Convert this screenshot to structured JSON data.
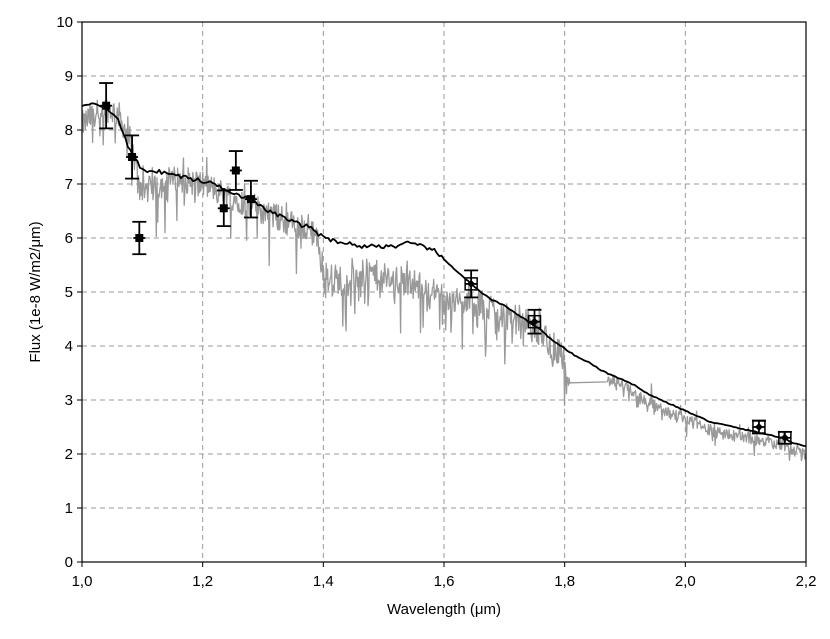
{
  "chart_data": {
    "type": "line",
    "title": "",
    "xlabel": "Wavelength (μm)",
    "ylabel": "Flux (1e-8 W/m2/μm)",
    "xlim": [
      1.0,
      2.2
    ],
    "ylim": [
      0,
      10
    ],
    "x_ticks": [
      1.0,
      1.2,
      1.4,
      1.6,
      1.8,
      2.0,
      2.2
    ],
    "x_tick_labels": [
      "1,0",
      "1,2",
      "1,4",
      "1,6",
      "1,8",
      "2,0",
      "2,2"
    ],
    "y_ticks": [
      0,
      1,
      2,
      3,
      4,
      5,
      6,
      7,
      8,
      9,
      10
    ],
    "y_tick_labels": [
      "0",
      "1",
      "2",
      "3",
      "4",
      "5",
      "6",
      "7",
      "8",
      "9",
      "10"
    ],
    "grid": true,
    "legend": "none",
    "colors": {
      "spectrum": "#999999",
      "model": "#000000",
      "points": "#000000",
      "grid": "#999999"
    },
    "series": [
      {
        "style": "noisy-spectrum",
        "x": [
          1.0,
          1.02,
          1.04,
          1.06,
          1.08,
          1.09,
          1.1,
          1.12,
          1.14,
          1.16,
          1.18,
          1.2,
          1.22,
          1.24,
          1.26,
          1.28,
          1.3,
          1.32,
          1.34,
          1.36,
          1.38,
          1.39,
          1.4,
          1.42,
          1.44,
          1.46,
          1.48,
          1.5,
          1.52,
          1.54,
          1.56,
          1.58,
          1.6,
          1.62,
          1.64,
          1.66,
          1.68,
          1.7,
          1.72,
          1.74,
          1.76,
          1.78,
          1.8,
          1.81,
          1.87,
          1.88,
          1.9,
          1.92,
          1.94,
          1.96,
          1.98,
          2.0,
          2.02,
          2.04,
          2.06,
          2.08,
          2.1,
          2.12,
          2.14,
          2.16,
          2.18,
          2.2
        ],
        "y": [
          8.1,
          8.3,
          8.4,
          8.3,
          7.8,
          7.3,
          6.9,
          6.9,
          7.05,
          7.1,
          7.05,
          7.0,
          6.9,
          6.8,
          6.7,
          6.6,
          6.5,
          6.4,
          6.3,
          6.2,
          6.2,
          6.0,
          5.3,
          5.25,
          5.2,
          5.3,
          5.35,
          5.25,
          5.2,
          5.2,
          5.1,
          5.0,
          4.9,
          4.8,
          4.8,
          4.75,
          4.7,
          4.6,
          4.5,
          4.4,
          4.25,
          4.0,
          3.8,
          3.4,
          3.35,
          3.35,
          3.25,
          3.1,
          2.95,
          2.85,
          2.75,
          2.65,
          2.55,
          2.45,
          2.4,
          2.35,
          2.3,
          2.25,
          2.2,
          2.15,
          2.05,
          2.0
        ]
      },
      {
        "style": "smooth-model",
        "x": [
          1.0,
          1.02,
          1.04,
          1.06,
          1.08,
          1.1,
          1.12,
          1.14,
          1.16,
          1.18,
          1.2,
          1.22,
          1.24,
          1.26,
          1.28,
          1.3,
          1.32,
          1.34,
          1.36,
          1.38,
          1.4,
          1.42,
          1.44,
          1.46,
          1.48,
          1.5,
          1.52,
          1.54,
          1.56,
          1.58,
          1.6,
          1.62,
          1.64,
          1.66,
          1.68,
          1.7,
          1.72,
          1.74,
          1.76,
          1.78,
          1.8,
          1.82,
          1.84,
          1.86,
          1.88,
          1.9,
          1.92,
          1.94,
          1.96,
          1.98,
          2.0,
          2.02,
          2.04,
          2.06,
          2.08,
          2.1,
          2.12,
          2.14,
          2.16,
          2.18,
          2.2
        ],
        "y": [
          8.45,
          8.5,
          8.4,
          8.2,
          7.6,
          7.25,
          7.25,
          7.2,
          7.15,
          7.1,
          7.05,
          7.0,
          6.9,
          6.8,
          6.7,
          6.55,
          6.45,
          6.35,
          6.25,
          6.2,
          6.0,
          5.95,
          5.9,
          5.85,
          5.85,
          5.85,
          5.85,
          5.9,
          5.85,
          5.8,
          5.6,
          5.4,
          5.2,
          5.0,
          4.85,
          4.75,
          4.6,
          4.45,
          4.3,
          4.1,
          3.95,
          3.8,
          3.7,
          3.55,
          3.45,
          3.35,
          3.25,
          3.1,
          3.0,
          2.9,
          2.8,
          2.7,
          2.6,
          2.55,
          2.5,
          2.45,
          2.4,
          2.35,
          2.3,
          2.2,
          2.15
        ]
      }
    ],
    "points": [
      {
        "x": 1.04,
        "y": 8.45,
        "yerr": 0.42,
        "marker": "square"
      },
      {
        "x": 1.083,
        "y": 7.5,
        "yerr": 0.4,
        "marker": "square"
      },
      {
        "x": 1.095,
        "y": 6.0,
        "yerr": 0.3,
        "marker": "square"
      },
      {
        "x": 1.235,
        "y": 6.55,
        "yerr": 0.33,
        "marker": "square"
      },
      {
        "x": 1.255,
        "y": 7.25,
        "yerr": 0.36,
        "marker": "square"
      },
      {
        "x": 1.28,
        "y": 6.72,
        "yerr": 0.34,
        "marker": "square"
      },
      {
        "x": 1.645,
        "y": 5.15,
        "yerr": 0.25,
        "marker": "diamond"
      },
      {
        "x": 1.75,
        "y": 4.45,
        "yerr": 0.22,
        "marker": "diamond"
      },
      {
        "x": 2.122,
        "y": 2.5,
        "yerr": 0.12,
        "marker": "diamond"
      },
      {
        "x": 2.165,
        "y": 2.3,
        "yerr": 0.11,
        "marker": "diamond"
      }
    ]
  }
}
